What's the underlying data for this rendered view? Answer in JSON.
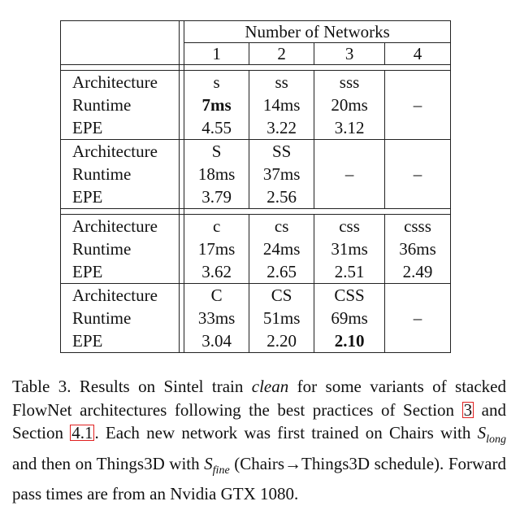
{
  "header": {
    "group_label": "Number of Networks",
    "columns": [
      "1",
      "2",
      "3",
      "4"
    ]
  },
  "row_labels": [
    "Architecture",
    "Runtime",
    "EPE"
  ],
  "blocks": [
    {
      "architecture": [
        "s",
        "ss",
        "sss",
        ""
      ],
      "runtime": [
        "7ms",
        "14ms",
        "20ms",
        "–"
      ],
      "epe": [
        "4.55",
        "3.22",
        "3.12",
        ""
      ]
    },
    {
      "architecture": [
        "S",
        "SS",
        "",
        ""
      ],
      "runtime": [
        "18ms",
        "37ms",
        "–",
        "–"
      ],
      "epe": [
        "3.79",
        "2.56",
        "",
        ""
      ]
    },
    {
      "architecture": [
        "c",
        "cs",
        "css",
        "csss"
      ],
      "runtime": [
        "17ms",
        "24ms",
        "31ms",
        "36ms"
      ],
      "epe": [
        "3.62",
        "2.65",
        "2.51",
        "2.49"
      ]
    },
    {
      "architecture": [
        "C",
        "CS",
        "CSS",
        ""
      ],
      "runtime": [
        "33ms",
        "51ms",
        "69ms",
        "–"
      ],
      "epe": [
        "3.04",
        "2.20",
        "2.10",
        ""
      ]
    }
  ],
  "caption": {
    "part1": "Table 3. Results on Sintel train ",
    "clean": "clean",
    "part2": " for some variants of stacked FlowNet architectures following the best practices of Section ",
    "ref1": "3",
    "part3": " and Section ",
    "ref2": "4.1",
    "part4": ". Each new network was first trained on Chairs with ",
    "s_long_base": "S",
    "s_long_sub": "long",
    "part5": " and then on Things3D with ",
    "s_fine_base": "S",
    "s_fine_sub": "fine",
    "part6": " (Chairs→Things3D schedule). Forward pass times are from an Nvidia GTX 1080."
  }
}
